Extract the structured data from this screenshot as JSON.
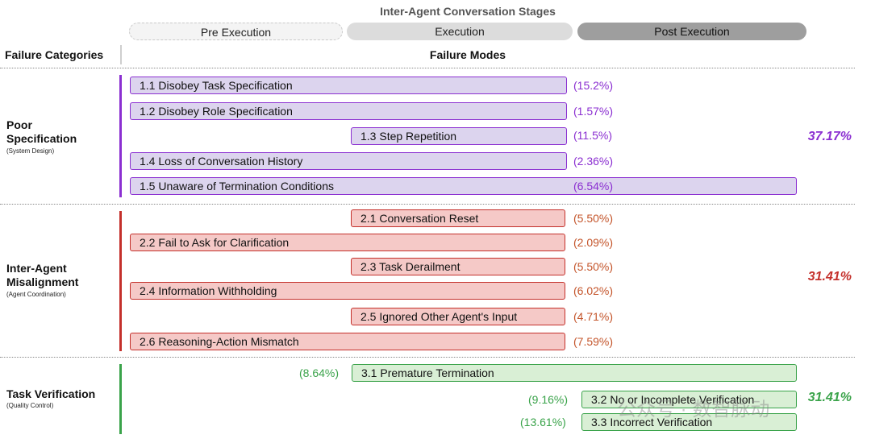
{
  "stages": {
    "title": "Inter-Agent Conversation Stages",
    "pre": "Pre Execution",
    "execution": "Execution",
    "post": "Post Execution"
  },
  "headers": {
    "categories": "Failure Categories",
    "modes": "Failure Modes"
  },
  "categories": [
    {
      "name_line1": "Poor",
      "name_line2": "Specification",
      "subtitle": "(System Design)",
      "total": "37.17%",
      "color": "#8b2fd1",
      "modes": [
        {
          "label": "1.1 Disobey Task Specification",
          "pct": "(15.2%)"
        },
        {
          "label": "1.2 Disobey Role Specification",
          "pct": "(1.57%)"
        },
        {
          "label": "1.3 Step Repetition",
          "pct": "(11.5%)"
        },
        {
          "label": "1.4 Loss of Conversation History",
          "pct": "(2.36%)"
        },
        {
          "label": "1.5 Unaware of Termination Conditions",
          "pct": "(6.54%)"
        }
      ]
    },
    {
      "name_line1": "Inter-Agent",
      "name_line2": "Misalignment",
      "subtitle": "(Agent Coordination)",
      "total": "31.41%",
      "color": "#c4302b",
      "modes": [
        {
          "label": "2.1 Conversation Reset",
          "pct": "(5.50%)"
        },
        {
          "label": "2.2 Fail to Ask for Clarification",
          "pct": "(2.09%)"
        },
        {
          "label": "2.3 Task Derailment",
          "pct": "(5.50%)"
        },
        {
          "label": "2.4 Information Withholding",
          "pct": "(6.02%)"
        },
        {
          "label": "2.5 Ignored Other Agent's Input",
          "pct": "(4.71%)"
        },
        {
          "label": "2.6 Reasoning-Action Mismatch",
          "pct": "(7.59%)"
        }
      ]
    },
    {
      "name_line1": "Task Verification",
      "subtitle": "(Quality Control)",
      "total": "31.41%",
      "color": "#3aa34a",
      "modes": [
        {
          "label": "3.1  Premature Termination",
          "pct": "(8.64%)"
        },
        {
          "label": "3.2 No or Incomplete Verification",
          "pct": "(9.16%)"
        },
        {
          "label": "3.3 Incorrect Verification",
          "pct": "(13.61%)"
        }
      ]
    }
  ],
  "watermark": "公众号 · 数智脉动"
}
